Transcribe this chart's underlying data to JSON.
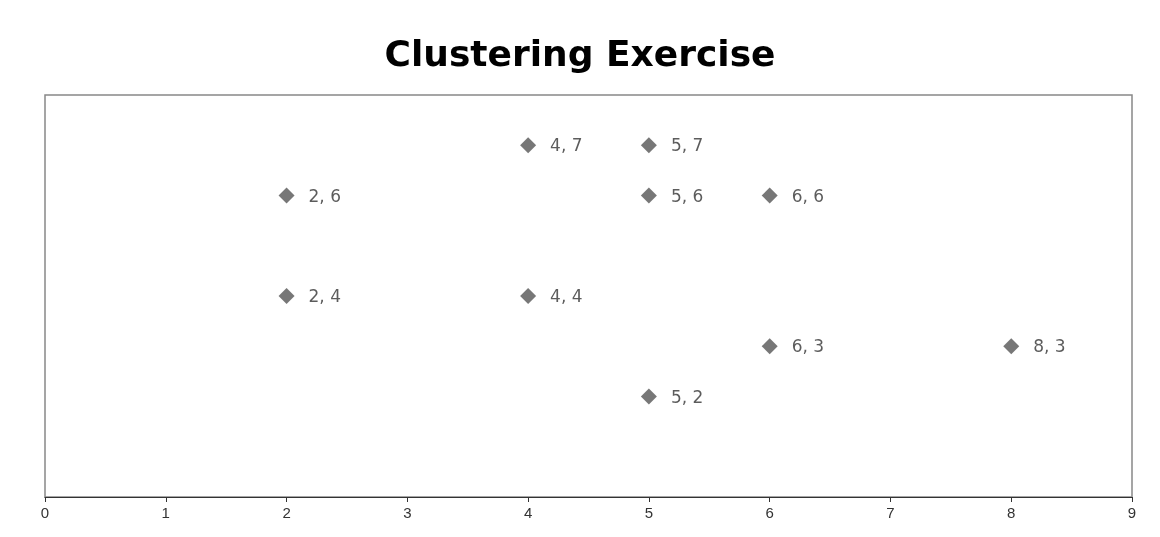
{
  "chart_data": {
    "type": "scatter",
    "title": "Clustering Exercise",
    "x": [
      2,
      2,
      4,
      5,
      5,
      6,
      4,
      6,
      8,
      5
    ],
    "values": [
      6,
      4,
      7,
      7,
      6,
      6,
      4,
      3,
      3,
      2
    ],
    "value_labels": [
      "2, 6",
      "2, 4",
      "4, 7",
      "5, 7",
      "5, 6",
      "6, 6",
      "4, 4",
      "6, 3",
      "8, 3",
      "5, 2"
    ],
    "color": "#555555",
    "marker": "diamond",
    "xlim": [
      0,
      9
    ],
    "xticks": [
      0,
      1,
      2,
      3,
      4,
      5,
      6,
      7,
      8,
      9
    ],
    "ylim": [
      0,
      8
    ],
    "tick_labels": "x",
    "grid": false
  }
}
